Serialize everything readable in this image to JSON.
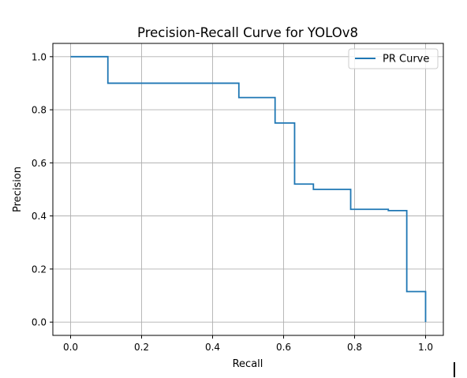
{
  "chart_data": {
    "type": "line",
    "title": "Precision-Recall Curve for YOLOv8",
    "xlabel": "Recall",
    "ylabel": "Precision",
    "xlim": [
      -0.05,
      1.05
    ],
    "ylim": [
      -0.05,
      1.05
    ],
    "xticks": [
      0.0,
      0.2,
      0.4,
      0.6,
      0.8,
      1.0
    ],
    "yticks": [
      0.0,
      0.2,
      0.4,
      0.6,
      0.8,
      1.0
    ],
    "xtick_labels": [
      "0.0",
      "0.2",
      "0.4",
      "0.6",
      "0.8",
      "1.0"
    ],
    "ytick_labels": [
      "0.0",
      "0.2",
      "0.4",
      "0.6",
      "0.8",
      "1.0"
    ],
    "grid": true,
    "legend_position": "upper right",
    "series": [
      {
        "name": "PR Curve",
        "color": "#1f77b4",
        "x": [
          0.0,
          0.105,
          0.105,
          0.474,
          0.474,
          0.576,
          0.576,
          0.631,
          0.631,
          0.684,
          0.684,
          0.789,
          0.789,
          0.895,
          0.895,
          0.947,
          0.947,
          1.0,
          1.0
        ],
        "y": [
          1.0,
          1.0,
          0.9,
          0.9,
          0.846,
          0.846,
          0.75,
          0.75,
          0.52,
          0.52,
          0.5,
          0.5,
          0.425,
          0.425,
          0.42,
          0.42,
          0.115,
          0.115,
          0.0
        ]
      }
    ]
  }
}
